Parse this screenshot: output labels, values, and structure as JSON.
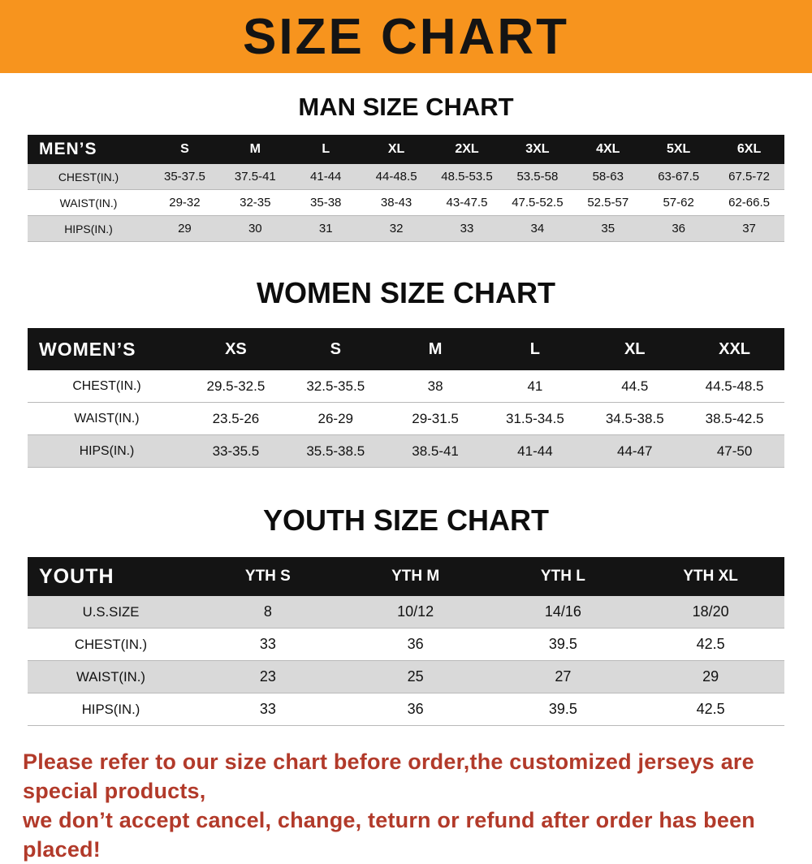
{
  "banner": {
    "title": "SIZE CHART"
  },
  "colors": {
    "banner_bg": "#f7941e",
    "table_header_bg": "#141414",
    "row_shaded": "#d9d9d9",
    "footer_text": "#b23a2a"
  },
  "chart_data": [
    {
      "type": "table",
      "title": "MAN SIZE CHART",
      "corner_label": "MEN’S",
      "columns": [
        "S",
        "M",
        "L",
        "XL",
        "2XL",
        "3XL",
        "4XL",
        "5XL",
        "6XL"
      ],
      "rows": [
        {
          "label": "CHEST(IN.)",
          "values": [
            "35-37.5",
            "37.5-41",
            "41-44",
            "44-48.5",
            "48.5-53.5",
            "53.5-58",
            "58-63",
            "63-67.5",
            "67.5-72"
          ]
        },
        {
          "label": "WAIST(IN.)",
          "values": [
            "29-32",
            "32-35",
            "35-38",
            "38-43",
            "43-47.5",
            "47.5-52.5",
            "52.5-57",
            "57-62",
            "62-66.5"
          ]
        },
        {
          "label": "HIPS(IN.)",
          "values": [
            "29",
            "30",
            "31",
            "32",
            "33",
            "34",
            "35",
            "36",
            "37"
          ]
        }
      ]
    },
    {
      "type": "table",
      "title": "WOMEN SIZE CHART",
      "corner_label": "WOMEN’S",
      "columns": [
        "XS",
        "S",
        "M",
        "L",
        "XL",
        "XXL"
      ],
      "rows": [
        {
          "label": "CHEST(IN.)",
          "values": [
            "29.5-32.5",
            "32.5-35.5",
            "38",
            "41",
            "44.5",
            "44.5-48.5"
          ]
        },
        {
          "label": "WAIST(IN.)",
          "values": [
            "23.5-26",
            "26-29",
            "29-31.5",
            "31.5-34.5",
            "34.5-38.5",
            "38.5-42.5"
          ]
        },
        {
          "label": "HIPS(IN.)",
          "values": [
            "33-35.5",
            "35.5-38.5",
            "38.5-41",
            "41-44",
            "44-47",
            "47-50"
          ]
        }
      ]
    },
    {
      "type": "table",
      "title": "YOUTH SIZE CHART",
      "corner_label": "YOUTH",
      "columns": [
        "YTH S",
        "YTH M",
        "YTH L",
        "YTH XL"
      ],
      "rows": [
        {
          "label": "U.S.SIZE",
          "values": [
            "8",
            "10/12",
            "14/16",
            "18/20"
          ]
        },
        {
          "label": "CHEST(IN.)",
          "values": [
            "33",
            "36",
            "39.5",
            "42.5"
          ]
        },
        {
          "label": "WAIST(IN.)",
          "values": [
            "23",
            "25",
            "27",
            "29"
          ]
        },
        {
          "label": "HIPS(IN.)",
          "values": [
            "33",
            "36",
            "39.5",
            "42.5"
          ]
        }
      ]
    }
  ],
  "footer": {
    "line1": "Please refer to our size chart before order,the customized jerseys are special products,",
    "line2": "we don’t accept cancel, change, teturn or refund after order has been placed!"
  }
}
